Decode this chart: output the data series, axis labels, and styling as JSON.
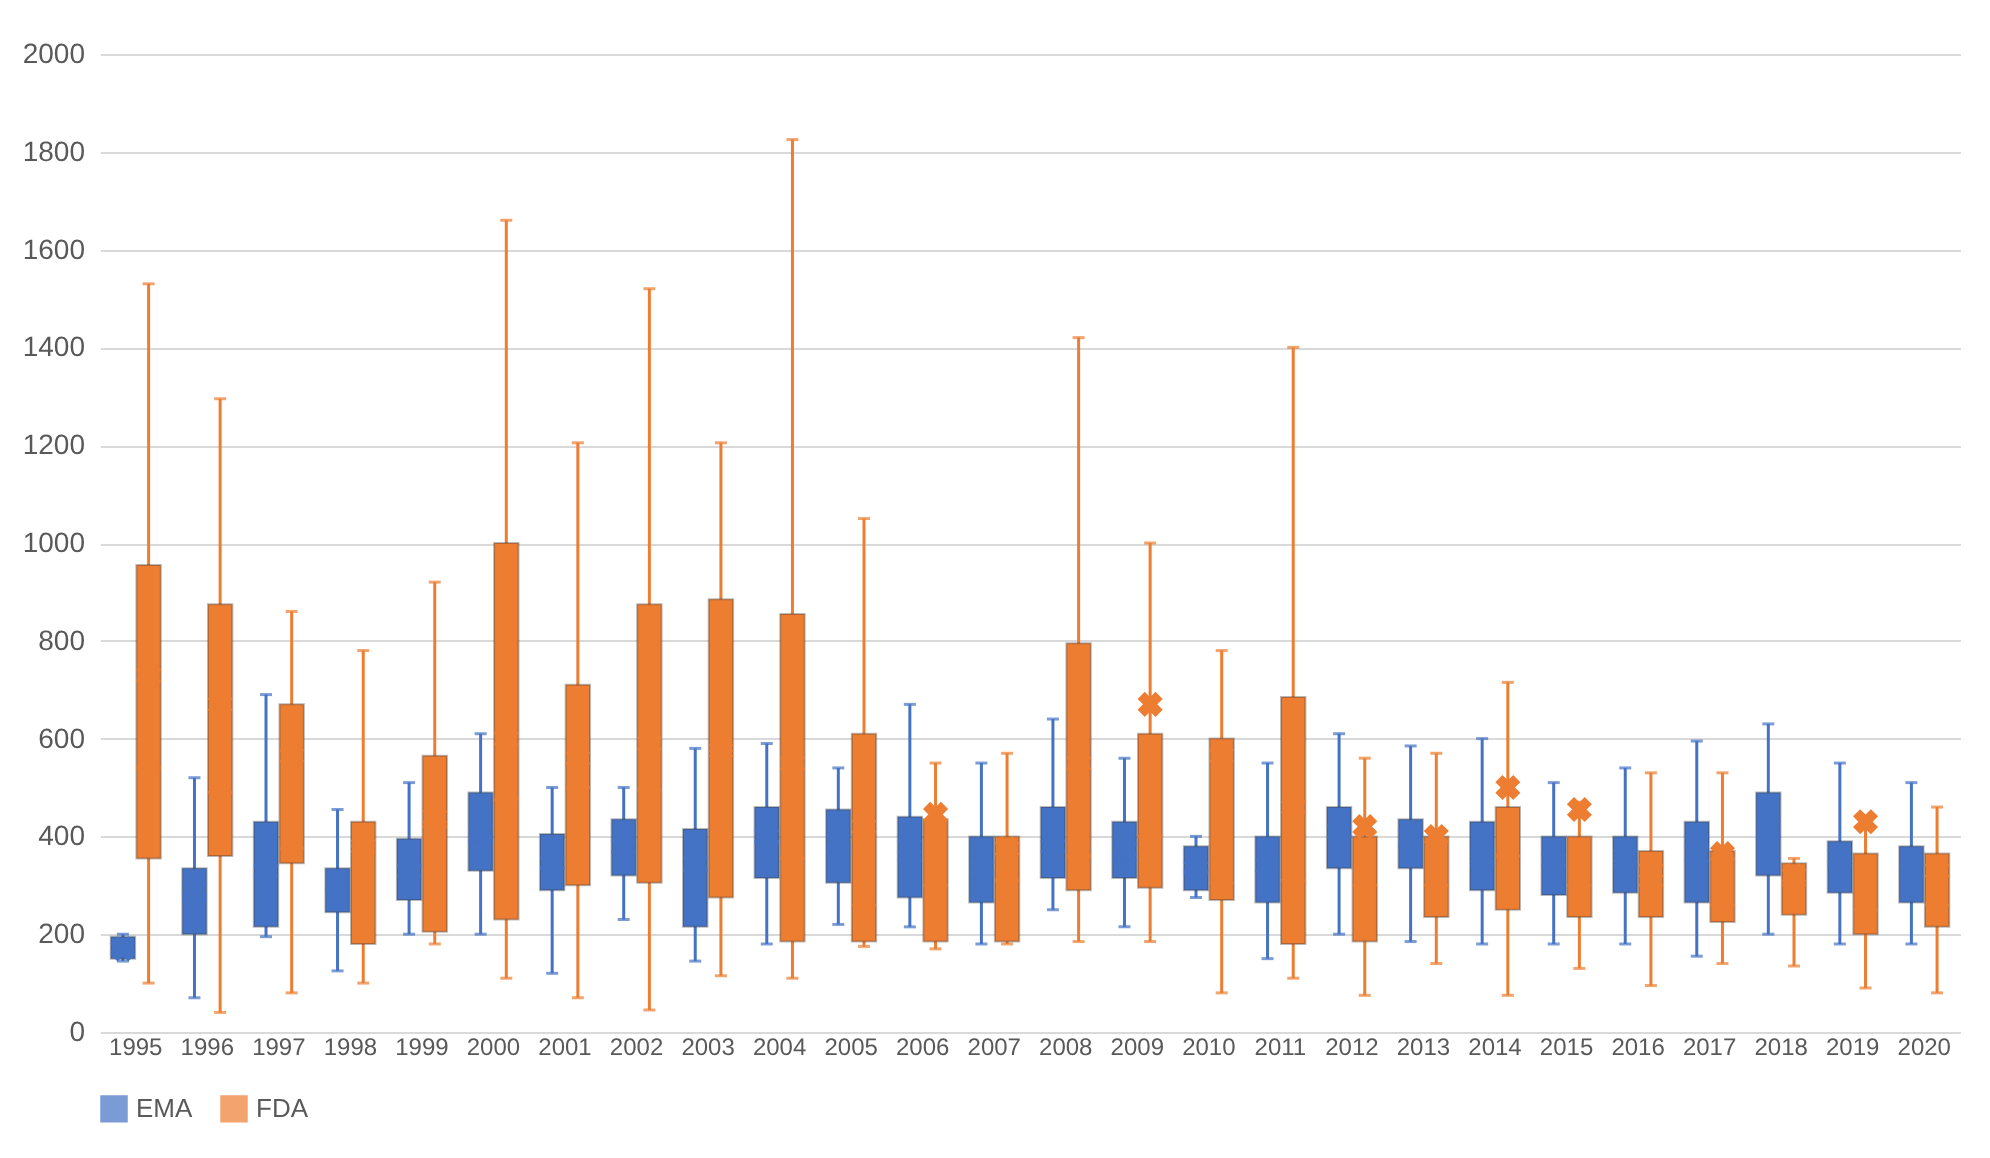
{
  "chart_data": {
    "type": "box",
    "categories": [
      "1995",
      "1996",
      "1997",
      "1998",
      "1999",
      "2000",
      "2001",
      "2002",
      "2003",
      "2004",
      "2005",
      "2006",
      "2007",
      "2008",
      "2009",
      "2010",
      "2011",
      "2012",
      "2013",
      "2014",
      "2015",
      "2016",
      "2017",
      "2018",
      "2019",
      "2020"
    ],
    "ylim": [
      0,
      2000
    ],
    "yticks": [
      0,
      200,
      400,
      600,
      800,
      1000,
      1200,
      1400,
      1600,
      1800,
      2000
    ],
    "grid": "y",
    "legend": "bottom",
    "marker": "cross",
    "series": [
      {
        "name": "EMA",
        "color": "#4472c4",
        "boxes": [
          {
            "low": 145,
            "q1": 150,
            "median": 165,
            "q3": 195,
            "high": 200,
            "mean": 170
          },
          {
            "low": 70,
            "q1": 200,
            "median": 270,
            "q3": 335,
            "high": 520,
            "mean": 290
          },
          {
            "low": 195,
            "q1": 215,
            "median": 340,
            "q3": 430,
            "high": 690,
            "mean": 330
          },
          {
            "low": 125,
            "q1": 245,
            "median": 290,
            "q3": 335,
            "high": 455,
            "mean": 300
          },
          {
            "low": 200,
            "q1": 270,
            "median": 340,
            "q3": 395,
            "high": 510,
            "mean": 330
          },
          {
            "low": 200,
            "q1": 330,
            "median": 390,
            "q3": 490,
            "high": 610,
            "mean": 410
          },
          {
            "low": 120,
            "q1": 290,
            "median": 335,
            "q3": 405,
            "high": 500,
            "mean": 345
          },
          {
            "low": 230,
            "q1": 320,
            "median": 370,
            "q3": 435,
            "high": 500,
            "mean": 380
          },
          {
            "low": 145,
            "q1": 215,
            "median": 330,
            "q3": 415,
            "high": 580,
            "mean": 345
          },
          {
            "low": 180,
            "q1": 315,
            "median": 390,
            "q3": 460,
            "high": 590,
            "mean": 400
          },
          {
            "low": 220,
            "q1": 305,
            "median": 370,
            "q3": 455,
            "high": 540,
            "mean": 390
          },
          {
            "low": 215,
            "q1": 275,
            "median": 350,
            "q3": 440,
            "high": 670,
            "mean": 380
          },
          {
            "low": 180,
            "q1": 265,
            "median": 330,
            "q3": 400,
            "high": 550,
            "mean": 335
          },
          {
            "low": 250,
            "q1": 315,
            "median": 370,
            "q3": 460,
            "high": 640,
            "mean": 380
          },
          {
            "low": 215,
            "q1": 315,
            "median": 350,
            "q3": 430,
            "high": 560,
            "mean": 375
          },
          {
            "low": 275,
            "q1": 290,
            "median": 330,
            "q3": 380,
            "high": 400,
            "mean": 335
          },
          {
            "low": 150,
            "q1": 265,
            "median": 330,
            "q3": 400,
            "high": 550,
            "mean": 340
          },
          {
            "low": 200,
            "q1": 335,
            "median": 400,
            "q3": 460,
            "high": 610,
            "mean": 410
          },
          {
            "low": 185,
            "q1": 335,
            "median": 380,
            "q3": 435,
            "high": 585,
            "mean": 400
          },
          {
            "low": 180,
            "q1": 290,
            "median": 340,
            "q3": 430,
            "high": 600,
            "mean": 360
          },
          {
            "low": 180,
            "q1": 280,
            "median": 340,
            "q3": 400,
            "high": 510,
            "mean": 350
          },
          {
            "low": 180,
            "q1": 285,
            "median": 340,
            "q3": 400,
            "high": 540,
            "mean": 360
          },
          {
            "low": 155,
            "q1": 265,
            "median": 350,
            "q3": 430,
            "high": 595,
            "mean": 390
          },
          {
            "low": 200,
            "q1": 320,
            "median": 400,
            "q3": 490,
            "high": 630,
            "mean": 420
          },
          {
            "low": 180,
            "q1": 285,
            "median": 340,
            "q3": 390,
            "high": 550,
            "mean": 360
          },
          {
            "low": 180,
            "q1": 265,
            "median": 340,
            "q3": 380,
            "high": 510,
            "mean": 330
          }
        ]
      },
      {
        "name": "FDA",
        "color": "#ed7d31",
        "boxes": [
          {
            "low": 100,
            "q1": 355,
            "median": 540,
            "q3": 955,
            "high": 1530,
            "mean": 730
          },
          {
            "low": 40,
            "q1": 360,
            "median": 490,
            "q3": 875,
            "high": 1295,
            "mean": 670
          },
          {
            "low": 80,
            "q1": 345,
            "median": 375,
            "q3": 670,
            "high": 860,
            "mean": 565
          },
          {
            "low": 100,
            "q1": 180,
            "median": 380,
            "q3": 430,
            "high": 780,
            "mean": 380
          },
          {
            "low": 180,
            "q1": 205,
            "median": 420,
            "q3": 565,
            "high": 920,
            "mean": 440
          },
          {
            "low": 110,
            "q1": 230,
            "median": 475,
            "q3": 1000,
            "high": 1660,
            "mean": 600
          },
          {
            "low": 70,
            "q1": 300,
            "median": 500,
            "q3": 710,
            "high": 1205,
            "mean": 560
          },
          {
            "low": 45,
            "q1": 305,
            "median": 495,
            "q3": 875,
            "high": 1520,
            "mean": 590
          },
          {
            "low": 115,
            "q1": 275,
            "median": 575,
            "q3": 885,
            "high": 1205,
            "mean": 575
          },
          {
            "low": 110,
            "q1": 185,
            "median": 355,
            "q3": 855,
            "high": 1825,
            "mean": 550
          },
          {
            "low": 175,
            "q1": 185,
            "median": 260,
            "q3": 610,
            "high": 1050,
            "mean": 420
          },
          {
            "low": 170,
            "q1": 185,
            "median": 300,
            "q3": 435,
            "high": 550,
            "mean": 445
          },
          {
            "low": 180,
            "q1": 185,
            "median": 310,
            "q3": 400,
            "high": 570,
            "mean": 375
          },
          {
            "low": 185,
            "q1": 290,
            "median": 360,
            "q3": 795,
            "high": 1420,
            "mean": 550
          },
          {
            "low": 185,
            "q1": 295,
            "median": 400,
            "q3": 610,
            "high": 1000,
            "mean": 670
          },
          {
            "low": 80,
            "q1": 270,
            "median": 305,
            "q3": 600,
            "high": 780,
            "mean": 565
          },
          {
            "low": 110,
            "q1": 180,
            "median": 310,
            "q3": 685,
            "high": 1400,
            "mean": 460
          },
          {
            "low": 75,
            "q1": 185,
            "median": 300,
            "q3": 400,
            "high": 560,
            "mean": 420
          },
          {
            "low": 140,
            "q1": 235,
            "median": 300,
            "q3": 400,
            "high": 570,
            "mean": 400
          },
          {
            "low": 75,
            "q1": 250,
            "median": 360,
            "q3": 460,
            "high": 715,
            "mean": 500
          },
          {
            "low": 130,
            "q1": 235,
            "median": 300,
            "q3": 400,
            "high": 470,
            "mean": 455
          },
          {
            "low": 95,
            "q1": 235,
            "median": 300,
            "q3": 370,
            "high": 530,
            "mean": 330
          },
          {
            "low": 140,
            "q1": 225,
            "median": 260,
            "q3": 370,
            "high": 530,
            "mean": 365
          },
          {
            "low": 135,
            "q1": 240,
            "median": 300,
            "q3": 345,
            "high": 355,
            "mean": 320
          },
          {
            "low": 90,
            "q1": 200,
            "median": 250,
            "q3": 365,
            "high": 430,
            "mean": 430
          },
          {
            "low": 80,
            "q1": 215,
            "median": 260,
            "q3": 365,
            "high": 460,
            "mean": 330
          }
        ]
      }
    ]
  }
}
